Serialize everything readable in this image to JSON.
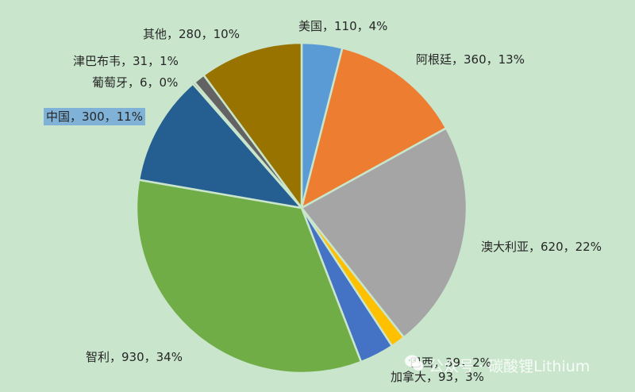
{
  "chart_data": {
    "type": "pie",
    "title": "",
    "slices": [
      {
        "name": "美国",
        "value": 110,
        "percent": "4%",
        "color": "#5b9bd5",
        "label": "美国，110，4%"
      },
      {
        "name": "阿根廷",
        "value": 360,
        "percent": "13%",
        "color": "#ed7d31",
        "label": "阿根廷，360，13%"
      },
      {
        "name": "澳大利亚",
        "value": 620,
        "percent": "22%",
        "color": "#a5a5a5",
        "label": "澳大利亚，620，22%"
      },
      {
        "name": "巴西",
        "value": 39,
        "percent": "2%",
        "color": "#ffc000",
        "label": "巴西，39，2%"
      },
      {
        "name": "加拿大",
        "value": 93,
        "percent": "3%",
        "color": "#4472c4",
        "label": "加拿大，93，3%"
      },
      {
        "name": "智利",
        "value": 930,
        "percent": "34%",
        "color": "#70ad47",
        "label": "智利，930，34%"
      },
      {
        "name": "中国",
        "value": 300,
        "percent": "11%",
        "color": "#255e91",
        "label": "中国，300，11%"
      },
      {
        "name": "葡萄牙",
        "value": 6,
        "percent": "0%",
        "color": "#9e480e",
        "label": "葡萄牙，6，0%"
      },
      {
        "name": "津巴布韦",
        "value": 31,
        "percent": "1%",
        "color": "#636363",
        "label": "津巴布韦，31，1%"
      },
      {
        "name": "其他",
        "value": 280,
        "percent": "10%",
        "color": "#997300",
        "label": "其他，280，10%"
      }
    ],
    "legend": "none",
    "selected_label": "中国"
  },
  "watermark": {
    "text": "公众号 · 碳酸锂Lithium",
    "icon": "wechat-icon"
  }
}
